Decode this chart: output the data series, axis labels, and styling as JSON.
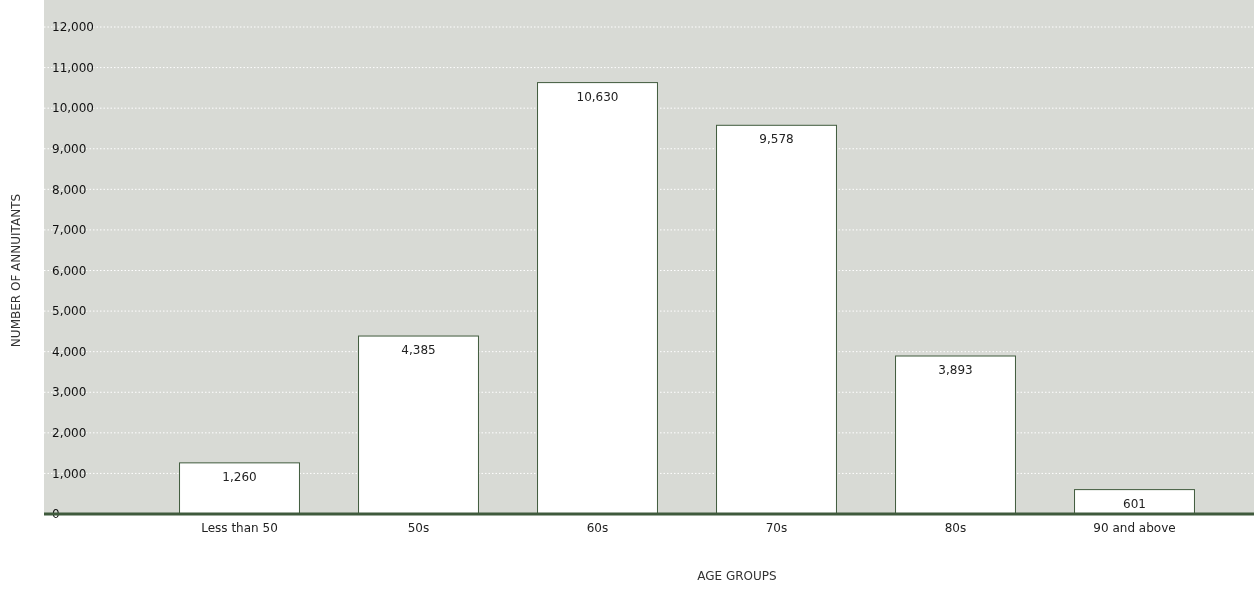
{
  "chart_data": {
    "type": "bar",
    "xlabel": "AGE GROUPS",
    "ylabel": "NUMBER OF ANNUITANTS",
    "categories": [
      "Less than 50",
      "50s",
      "60s",
      "70s",
      "80s",
      "90 and above"
    ],
    "values": [
      1260,
      4385,
      10630,
      9578,
      3893,
      601
    ],
    "value_labels": [
      "1,260",
      "4,385",
      "10,630",
      "9,578",
      "3,893",
      "601"
    ],
    "color": "#ffffff",
    "ylim": [
      0,
      12000
    ],
    "yticks": [
      {
        "value": 0,
        "label": "0"
      },
      {
        "value": 1000,
        "label": "1,000"
      },
      {
        "value": 2000,
        "label": "2,000"
      },
      {
        "value": 3000,
        "label": "3,000"
      },
      {
        "value": 4000,
        "label": "4,000"
      },
      {
        "value": 5000,
        "label": "5,000"
      },
      {
        "value": 6000,
        "label": "6,000"
      },
      {
        "value": 7000,
        "label": "7,000"
      },
      {
        "value": 8000,
        "label": "8,000"
      },
      {
        "value": 9000,
        "label": "9,000"
      },
      {
        "value": 10000,
        "label": "10,000"
      },
      {
        "value": 11000,
        "label": "11,000"
      },
      {
        "value": 12000,
        "label": "12,000"
      }
    ],
    "grid": "y"
  }
}
